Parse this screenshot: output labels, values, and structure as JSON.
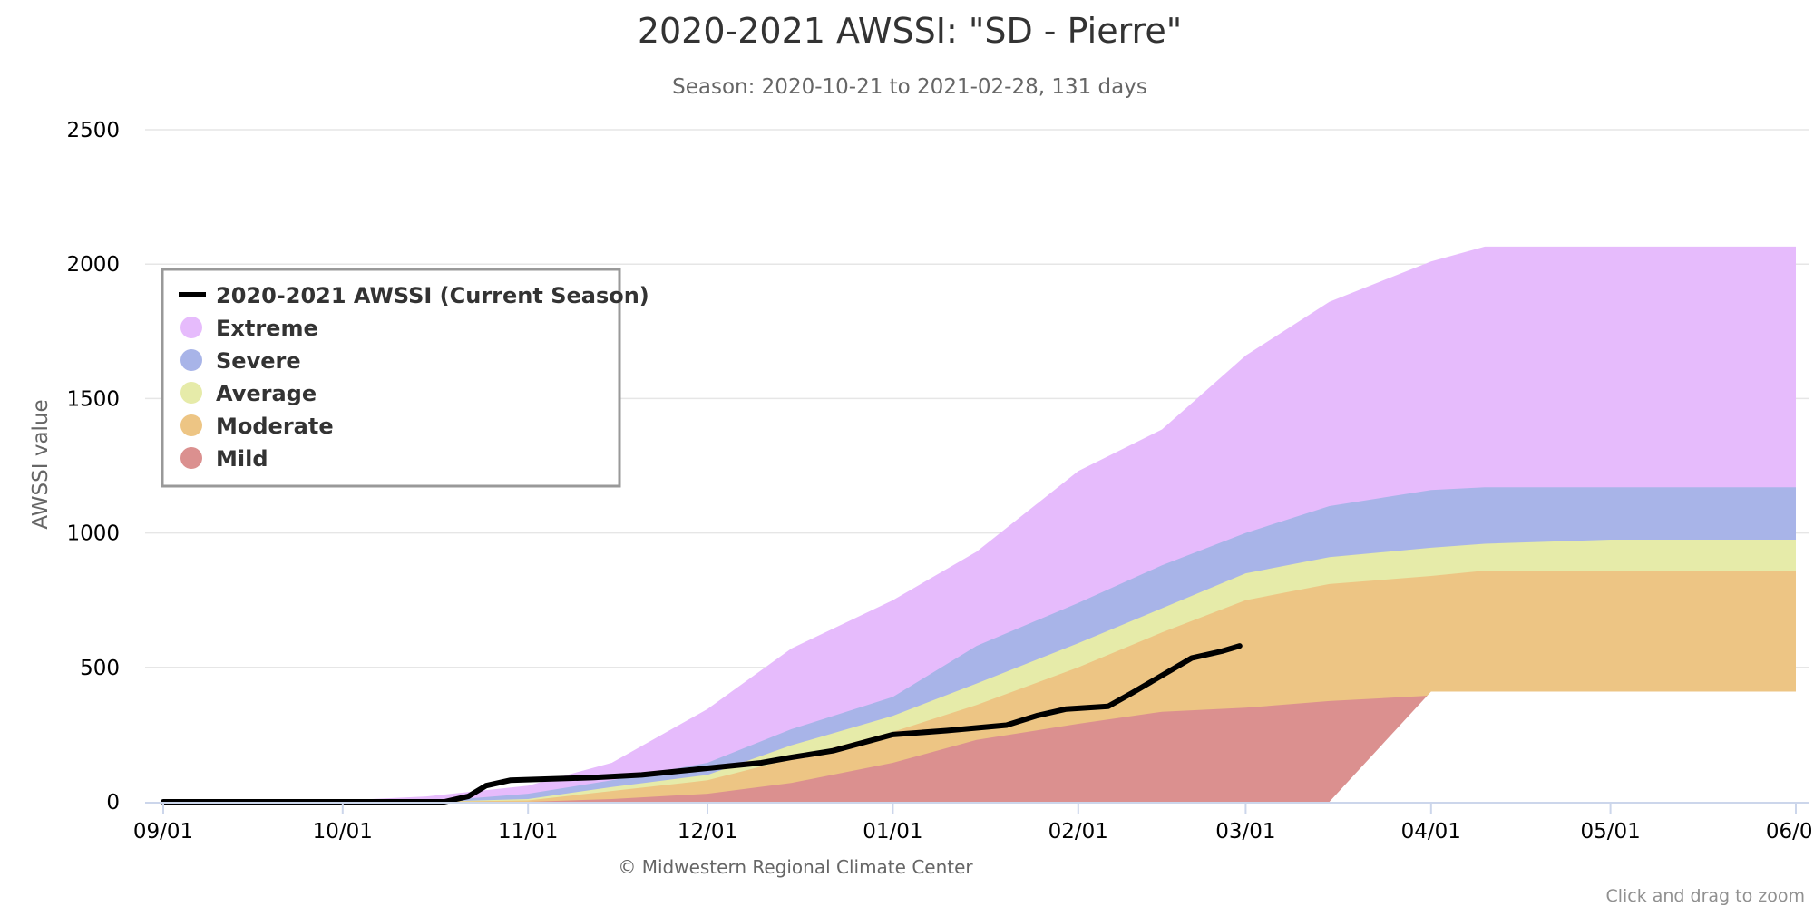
{
  "page": {
    "credits": "© Midwestern Regional Climate Center",
    "zoom_hint": "Click and drag to zoom"
  },
  "chart_data": {
    "type": "area",
    "title": "2020-2021 AWSSI: \"SD - Pierre\"",
    "subtitle": "Season: 2020-10-21 to 2021-02-28, 131 days",
    "xlabel": "",
    "ylabel": "AWSSI value",
    "xlim": [
      "2020-09-01",
      "2021-06-01"
    ],
    "ylim": [
      0,
      2500
    ],
    "x_ticks": [
      "09/01",
      "10/01",
      "11/01",
      "12/01",
      "01/01",
      "02/01",
      "03/01",
      "04/01",
      "05/01",
      "06/01"
    ],
    "y_ticks": [
      0,
      500,
      1000,
      1500,
      2000,
      2500
    ],
    "grid": true,
    "legend_position": "upper-left",
    "legend": [
      {
        "label": "2020-2021 AWSSI (Current Season)",
        "symbol": "line",
        "color": "#000000"
      },
      {
        "label": "Extreme",
        "symbol": "circle",
        "color": "#e6bbfc"
      },
      {
        "label": "Severe",
        "symbol": "circle",
        "color": "#a8b4e8"
      },
      {
        "label": "Average",
        "symbol": "circle",
        "color": "#e6eba9"
      },
      {
        "label": "Moderate",
        "symbol": "circle",
        "color": "#edc584"
      },
      {
        "label": "Mild",
        "symbol": "circle",
        "color": "#db908f"
      }
    ],
    "x": [
      "2020-09-01",
      "2020-10-01",
      "2020-10-15",
      "2020-11-01",
      "2020-11-15",
      "2020-12-01",
      "2020-12-15",
      "2021-01-01",
      "2021-01-15",
      "2021-02-01",
      "2021-02-15",
      "2021-03-01",
      "2021-03-15",
      "2021-04-01",
      "2021-04-10",
      "2021-05-01",
      "2021-06-01"
    ],
    "bands": [
      {
        "name": "Extreme",
        "color": "#e6bbfc",
        "upper": [
          0,
          5,
          20,
          60,
          145,
          345,
          570,
          750,
          930,
          1230,
          1385,
          1660,
          1860,
          2010,
          2065,
          2065,
          2065
        ]
      },
      {
        "name": "Severe",
        "color": "#a8b4e8",
        "upper": [
          0,
          0,
          0,
          30,
          80,
          145,
          270,
          390,
          580,
          740,
          880,
          1000,
          1100,
          1160,
          1170,
          1170,
          1170
        ]
      },
      {
        "name": "Average",
        "color": "#e6eba9",
        "upper": [
          0,
          0,
          0,
          10,
          55,
          100,
          210,
          320,
          440,
          590,
          720,
          850,
          910,
          945,
          960,
          975,
          975
        ]
      },
      {
        "name": "Moderate",
        "color": "#edc584",
        "upper": [
          0,
          0,
          0,
          5,
          40,
          80,
          160,
          260,
          360,
          500,
          630,
          750,
          810,
          840,
          860,
          860,
          860
        ]
      },
      {
        "name": "Mild",
        "color": "#db908f",
        "upper": [
          0,
          0,
          0,
          0,
          10,
          30,
          70,
          145,
          230,
          290,
          335,
          350,
          375,
          395,
          410,
          410,
          410
        ]
      },
      {
        "name": "Base",
        "color": "#ffffff",
        "upper": [
          0,
          0,
          0,
          0,
          0,
          0,
          0,
          0,
          0,
          0,
          0,
          0,
          0,
          410,
          410,
          410,
          410
        ]
      }
    ],
    "series": [
      {
        "name": "2020-2021 AWSSI (Current Season)",
        "color": "#000000",
        "x": [
          "2020-09-01",
          "2020-10-18",
          "2020-10-22",
          "2020-10-25",
          "2020-10-29",
          "2020-11-05",
          "2020-11-12",
          "2020-11-20",
          "2020-12-01",
          "2020-12-10",
          "2020-12-15",
          "2020-12-22",
          "2021-01-01",
          "2021-01-10",
          "2021-01-20",
          "2021-01-25",
          "2021-01-30",
          "2021-02-06",
          "2021-02-10",
          "2021-02-15",
          "2021-02-20",
          "2021-02-25",
          "2021-02-28"
        ],
        "values": [
          0,
          0,
          20,
          60,
          80,
          85,
          90,
          100,
          125,
          145,
          165,
          190,
          250,
          265,
          285,
          320,
          345,
          355,
          405,
          470,
          535,
          560,
          580
        ]
      }
    ]
  }
}
